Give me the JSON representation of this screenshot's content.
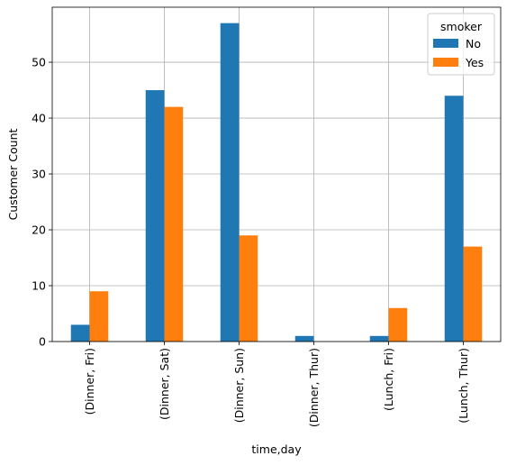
{
  "chart_data": {
    "type": "bar",
    "xlabel": "time,day",
    "ylabel": "Customer Count",
    "categories": [
      "(Dinner, Fri)",
      "(Dinner, Sat)",
      "(Dinner, Sun)",
      "(Dinner, Thur)",
      "(Lunch, Fri)",
      "(Lunch, Thur)"
    ],
    "series": [
      {
        "name": "No",
        "color": "#1f77b4",
        "values": [
          3,
          45,
          57,
          1,
          1,
          44
        ]
      },
      {
        "name": "Yes",
        "color": "#ff7f0e",
        "values": [
          9,
          42,
          19,
          0,
          6,
          17
        ]
      }
    ],
    "ylim": [
      0,
      59.85
    ],
    "yticks": [
      "0",
      "10",
      "20",
      "30",
      "40",
      "50"
    ],
    "grid": true,
    "legend": {
      "title": "smoker",
      "position": "top-right"
    }
  }
}
